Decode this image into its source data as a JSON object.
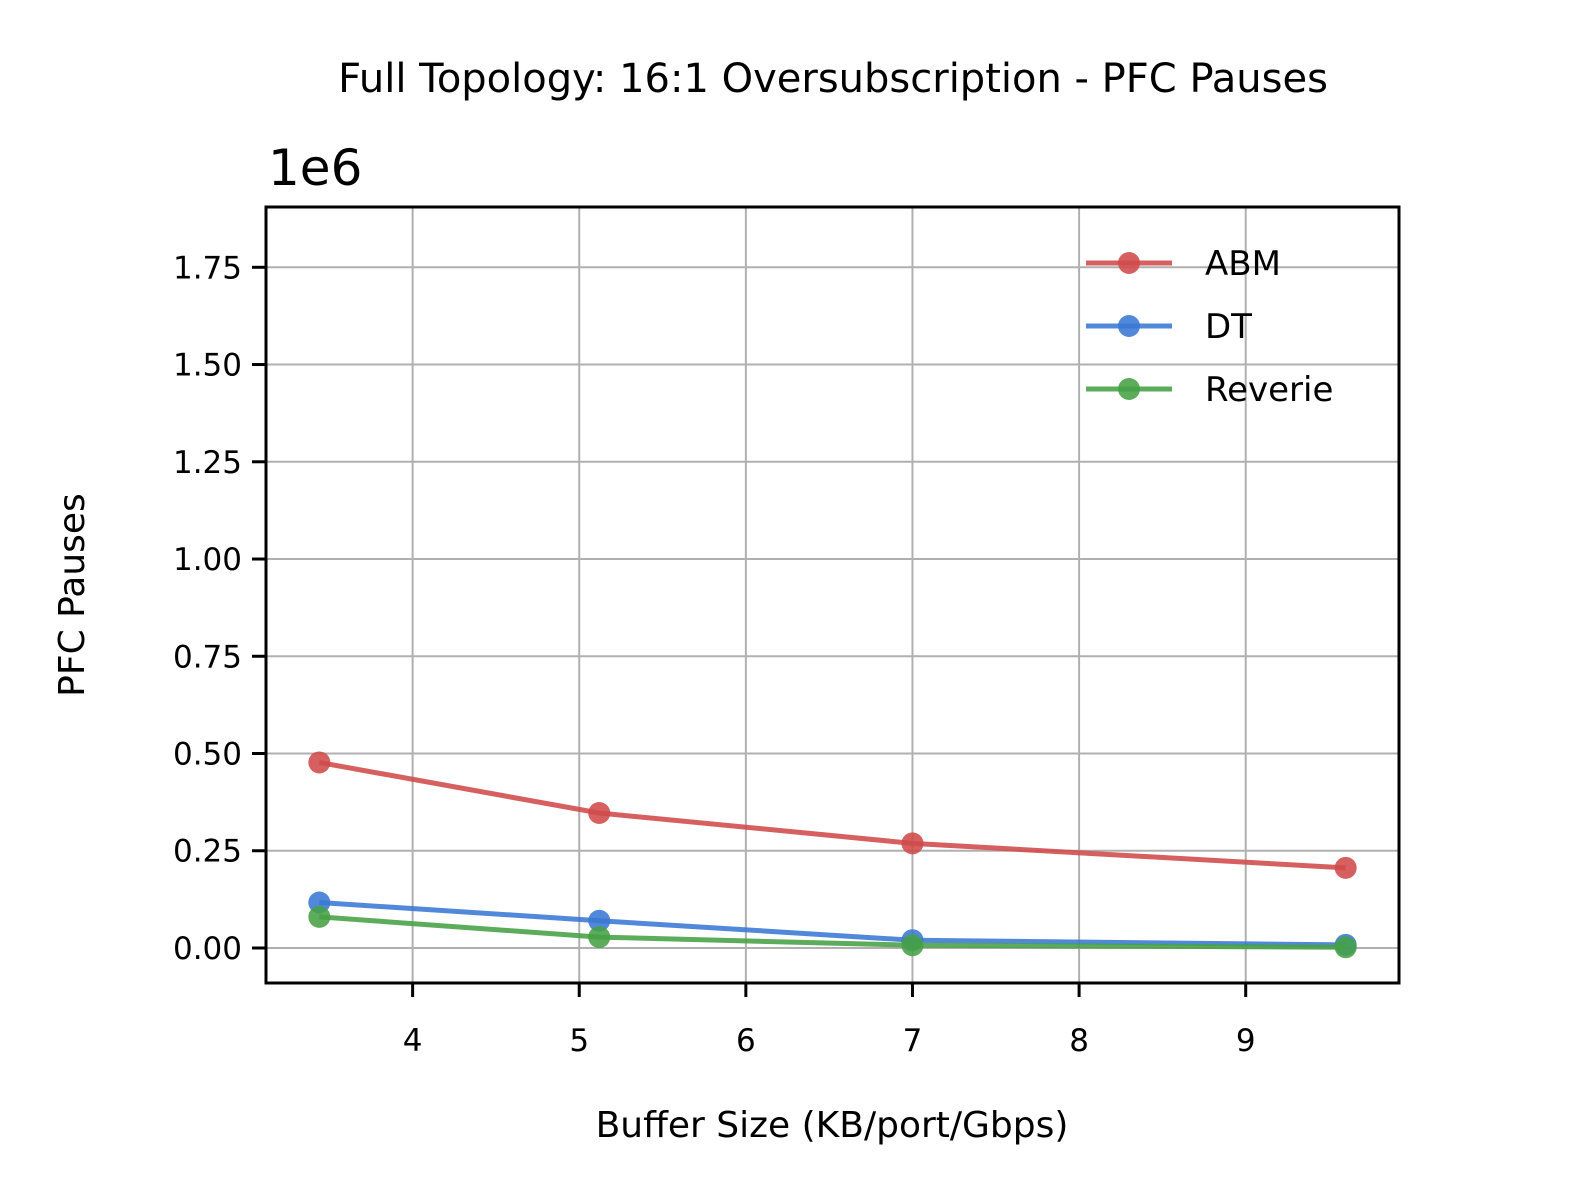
{
  "chart_data": {
    "type": "line",
    "title": "Full Topology: 16:1 Oversubscription - PFC Pauses",
    "xlabel": "Buffer Size (KB/port/Gbps)",
    "ylabel": "PFC Pauses",
    "y_offset_label": "1e6",
    "xlim": [
      3.12,
      9.92
    ],
    "ylim": [
      -0.09,
      1.905
    ],
    "x_ticks": [
      4,
      5,
      6,
      7,
      8,
      9
    ],
    "y_ticks": [
      0.0,
      0.25,
      0.5,
      0.75,
      1.0,
      1.25,
      1.5,
      1.75
    ],
    "x_tick_labels": [
      "4",
      "5",
      "6",
      "7",
      "8",
      "9"
    ],
    "y_tick_labels": [
      "0.00",
      "0.25",
      "0.50",
      "0.75",
      "1.00",
      "1.25",
      "1.50",
      "1.75"
    ],
    "grid": true,
    "legend_position": "top-right",
    "series": [
      {
        "name": "ABM",
        "color": "#d04a4a",
        "x": [
          3.44,
          5.12,
          7.0,
          9.6
        ],
        "values": [
          0.477,
          0.347,
          0.269,
          0.206
        ]
      },
      {
        "name": "DT",
        "color": "#3a78d4",
        "x": [
          3.44,
          5.12,
          7.0,
          9.6
        ],
        "values": [
          0.117,
          0.07,
          0.02,
          0.008
        ]
      },
      {
        "name": "Reverie",
        "color": "#45a045",
        "x": [
          3.44,
          5.12,
          7.0,
          9.6
        ],
        "values": [
          0.08,
          0.028,
          0.007,
          0.002
        ]
      }
    ]
  }
}
